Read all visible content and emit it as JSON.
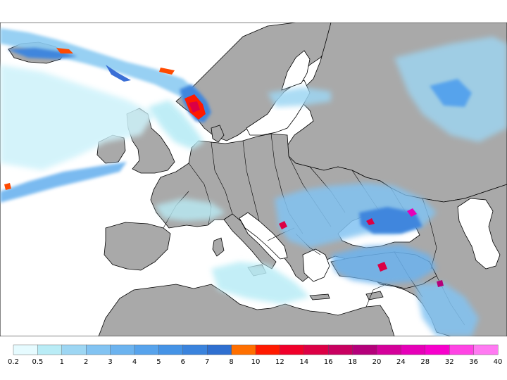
{
  "colors": {
    "sea": "#ffffff",
    "land": "#a9a9a9",
    "border": "#000000"
  },
  "legend": {
    "labels": [
      "0.2",
      "0.5",
      "1",
      "2",
      "3",
      "4",
      "5",
      "6",
      "7",
      "8",
      "10",
      "12",
      "14",
      "16",
      "18",
      "20",
      "24",
      "28",
      "32",
      "36",
      "40"
    ],
    "colors": [
      "#e6fbff",
      "#b9ecf6",
      "#9dd6f3",
      "#82c3f2",
      "#6cb3ef",
      "#57a3ec",
      "#4593e6",
      "#3a83dd",
      "#2f6fd0",
      "#ff6f00",
      "#ff1a00",
      "#f0002a",
      "#dc0045",
      "#c80060",
      "#b4007a",
      "#d4009a",
      "#e600b8",
      "#f700cc",
      "#ff44e4",
      "#ff7af2"
    ]
  }
}
